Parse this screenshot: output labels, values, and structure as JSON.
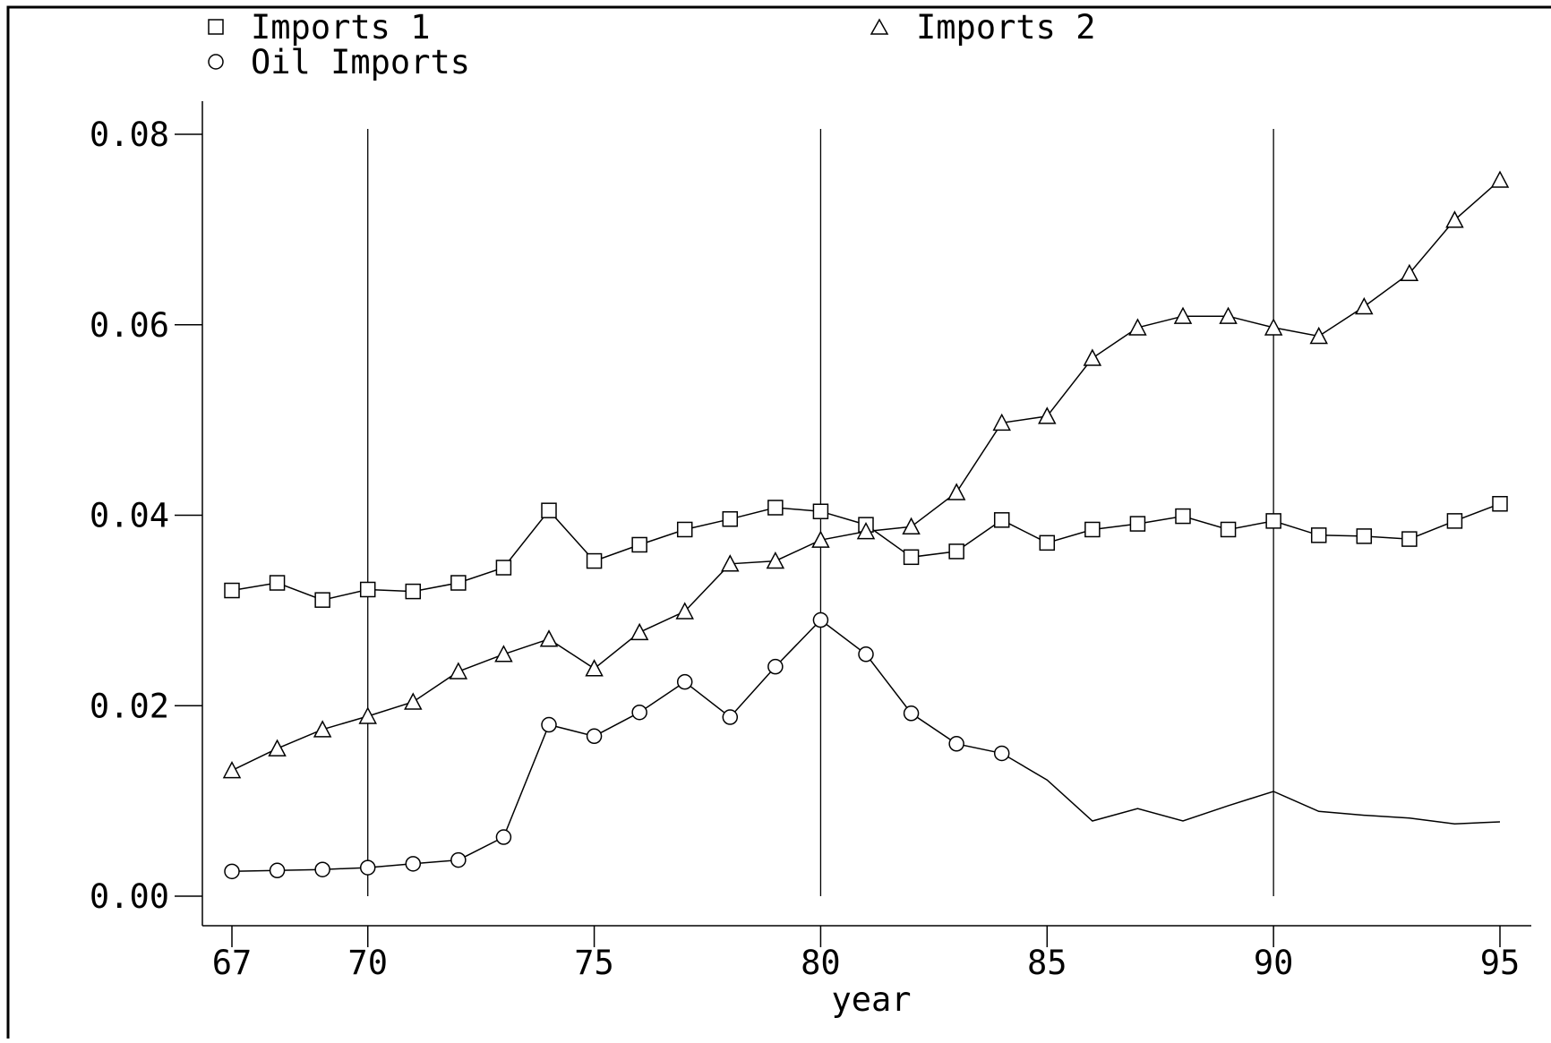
{
  "chart_data": {
    "type": "line",
    "title": "",
    "xlabel": "year",
    "ylabel": "",
    "xlim": [
      67,
      95
    ],
    "ylim": [
      0.0,
      0.08
    ],
    "x_ticks": [
      67,
      70,
      75,
      80,
      85,
      90,
      95
    ],
    "x_tick_labels": [
      "67",
      "70",
      "75",
      "80",
      "85",
      "90",
      "95"
    ],
    "y_ticks": [
      0.0,
      0.02,
      0.04,
      0.06,
      0.08
    ],
    "y_tick_labels": [
      "0.00",
      "0.02",
      "0.04",
      "0.06",
      "0.08"
    ],
    "reference_lines_x": [
      70,
      80,
      90
    ],
    "grid": false,
    "legend_position": "top",
    "x": [
      67,
      68,
      69,
      70,
      71,
      72,
      73,
      74,
      75,
      76,
      77,
      78,
      79,
      80,
      81,
      82,
      83,
      84,
      85,
      86,
      87,
      88,
      89,
      90,
      91,
      92,
      93,
      94,
      95
    ],
    "series": [
      {
        "name": "Imports 1",
        "marker": "square",
        "values": [
          0.0321,
          0.0329,
          0.0311,
          0.0322,
          0.032,
          0.0329,
          0.0345,
          0.0405,
          0.0352,
          0.0369,
          0.0385,
          0.0396,
          0.0408,
          0.0404,
          0.039,
          0.0356,
          0.0362,
          0.0395,
          0.0371,
          0.0385,
          0.0391,
          0.0399,
          0.0385,
          0.0394,
          0.0379,
          0.0378,
          0.0375,
          0.0394,
          0.0412
        ],
        "marker_until": 95
      },
      {
        "name": "Imports 2",
        "marker": "triangle",
        "values": [
          0.0132,
          0.0155,
          0.0175,
          0.0189,
          0.0204,
          0.0236,
          0.0254,
          0.027,
          0.0239,
          0.0277,
          0.0299,
          0.0349,
          0.0352,
          0.0374,
          0.0383,
          0.0388,
          0.0424,
          0.0497,
          0.0504,
          0.0565,
          0.0597,
          0.0609,
          0.0609,
          0.0597,
          0.0588,
          0.0619,
          0.0654,
          0.071,
          0.0752
        ],
        "marker_until": 95
      },
      {
        "name": "Oil Imports",
        "marker": "circle",
        "values": [
          0.0026,
          0.0027,
          0.0028,
          0.003,
          0.0034,
          0.0038,
          0.0062,
          0.018,
          0.0168,
          0.0193,
          0.0225,
          0.0188,
          0.0241,
          0.029,
          0.0254,
          0.0192,
          0.016,
          0.015,
          0.0122,
          0.0079,
          0.0092,
          0.0079,
          0.0095,
          0.011,
          0.0089,
          0.0085,
          0.0082,
          0.0076,
          0.0078
        ],
        "marker_until": 84
      }
    ]
  }
}
